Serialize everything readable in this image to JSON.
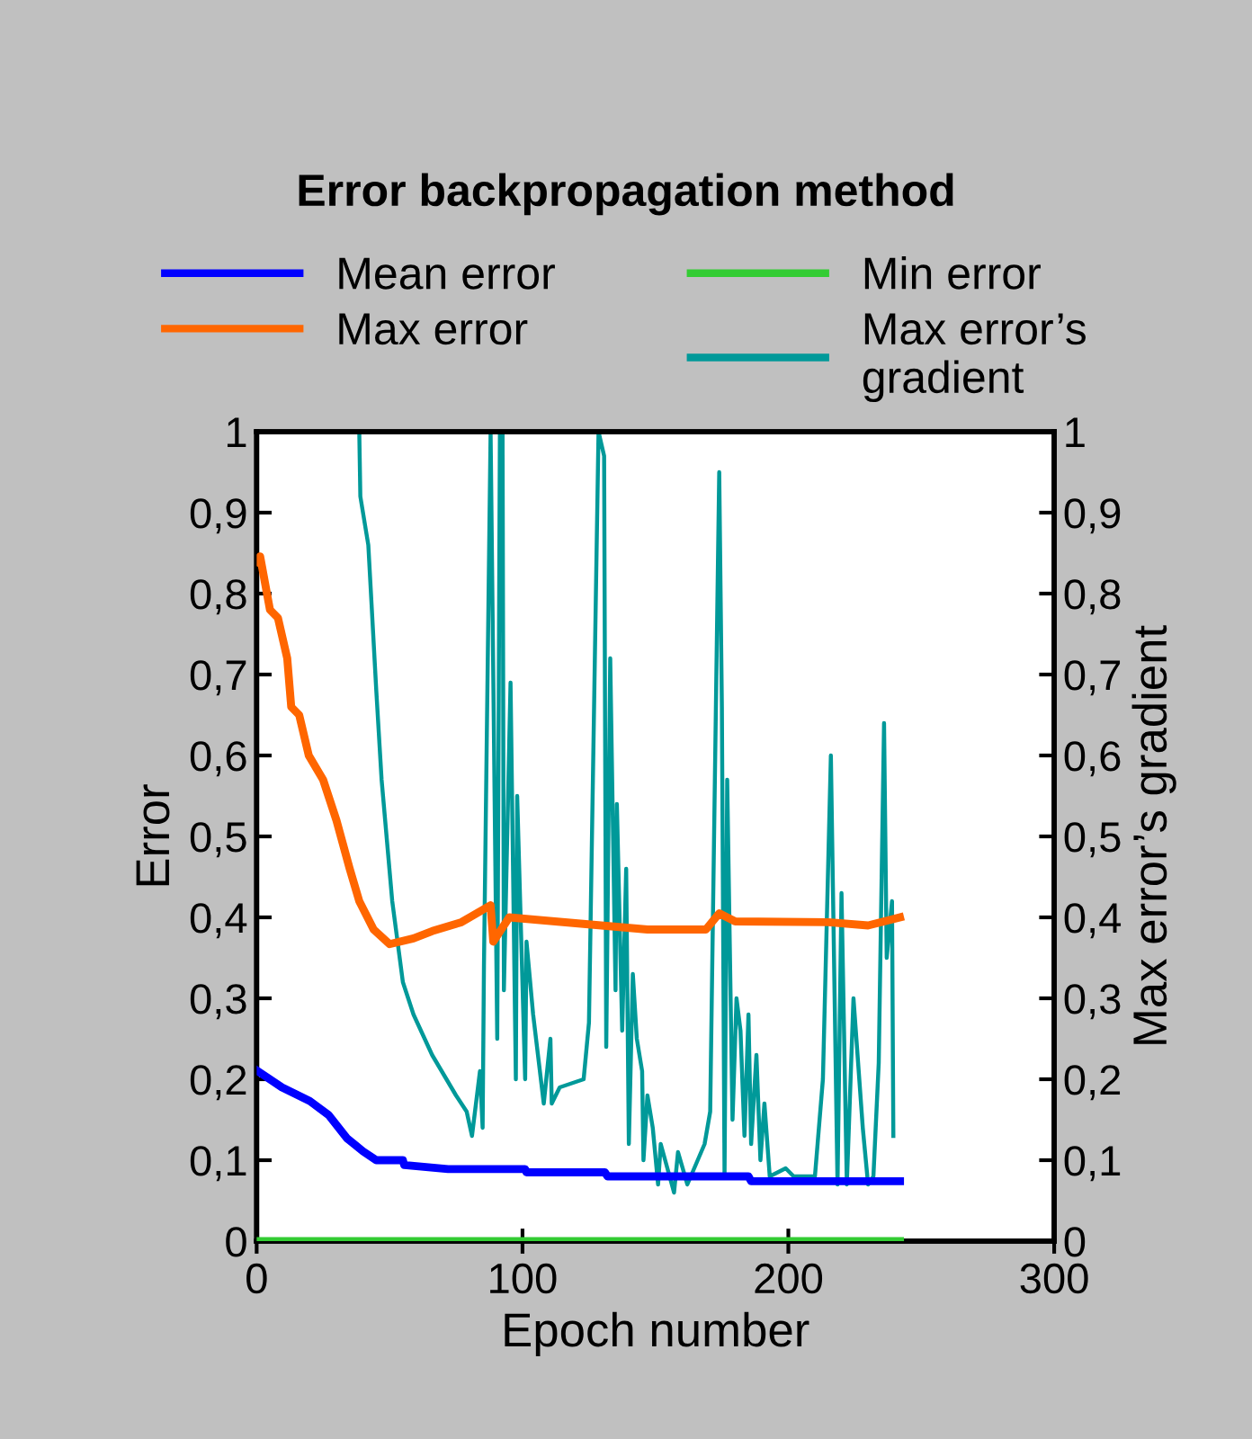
{
  "chart_data": {
    "type": "line",
    "title": "Error backpropagation method",
    "xlabel": "Epoch number",
    "ylabel": "Error",
    "y2label": "Max error’s gradient",
    "xlim": [
      0,
      300
    ],
    "xticks": [
      0,
      100,
      200,
      300
    ],
    "ylim": [
      0,
      1
    ],
    "yticks": [
      0,
      {
        "value": 0.1,
        "label": "0,1"
      },
      {
        "value": 0.2,
        "label": "0,2"
      },
      {
        "value": 0.3,
        "label": "0,3"
      },
      {
        "value": 0.4,
        "label": "0,4"
      },
      {
        "value": 0.5,
        "label": "0,5"
      },
      {
        "value": 0.6,
        "label": "0,6"
      },
      {
        "value": 0.7,
        "label": "0,7"
      },
      {
        "value": 0.8,
        "label": "0,8"
      },
      {
        "value": 0.9,
        "label": "0,9"
      },
      1
    ],
    "y2lim": [
      0,
      1
    ],
    "y2ticks": [
      0,
      {
        "value": 0.1,
        "label": "0,1"
      },
      {
        "value": 0.2,
        "label": "0,2"
      },
      {
        "value": 0.3,
        "label": "0,3"
      },
      {
        "value": 0.4,
        "label": "0,4"
      },
      {
        "value": 0.5,
        "label": "0,5"
      },
      {
        "value": 0.6,
        "label": "0,6"
      },
      {
        "value": 0.7,
        "label": "0,7"
      },
      {
        "value": 0.8,
        "label": "0,8"
      },
      {
        "value": 0.9,
        "label": "0,9"
      },
      1
    ],
    "grid": false,
    "legend": "top",
    "marker": "none",
    "line_style": "solid",
    "series": [
      {
        "name": "Mean error",
        "color": "#0000ff",
        "x": [
          0,
          9.5,
          20,
          27,
          34,
          40,
          45,
          55,
          55.5,
          72,
          101,
          101.5,
          131,
          132,
          185,
          186,
          242
        ],
        "values": [
          0.211,
          0.19,
          0.173,
          0.156,
          0.127,
          0.111,
          0.1,
          0.1,
          0.094,
          0.089,
          0.089,
          0.085,
          0.085,
          0.08,
          0.08,
          0.074,
          0.074
        ]
      },
      {
        "name": "Max error",
        "color": "#ff6600",
        "x": [
          0,
          1.3,
          5,
          8,
          11.5,
          13,
          16,
          19.6,
          25,
          30,
          35,
          38.6,
          44,
          50,
          59,
          66,
          77,
          88,
          89,
          95,
          147,
          169,
          174,
          180,
          215,
          230,
          242
        ],
        "values": [
          0.84,
          0.846,
          0.78,
          0.77,
          0.72,
          0.66,
          0.65,
          0.6,
          0.57,
          0.52,
          0.46,
          0.42,
          0.385,
          0.367,
          0.374,
          0.383,
          0.394,
          0.415,
          0.37,
          0.4,
          0.385,
          0.385,
          0.405,
          0.395,
          0.394,
          0.39,
          0.4
        ]
      },
      {
        "name": "Min error",
        "color": "#33cc33",
        "x": [
          0,
          242
        ],
        "values": [
          0,
          0
        ]
      },
      {
        "name": "Max error’s\ngradient",
        "color": "#009999",
        "axis": "y2",
        "x": [
          38.6,
          39,
          42,
          45,
          47,
          51,
          55,
          59,
          66,
          75,
          79,
          81,
          84,
          85,
          85.5,
          88,
          90.5,
          91.5,
          92.5,
          93,
          95.5,
          97.5,
          98,
          101,
          101.5,
          104,
          108,
          110.5,
          111,
          114,
          123,
          125,
          128.6,
          130.7,
          131.5,
          133,
          135,
          135.5,
          137.5,
          139,
          140,
          141.5,
          143,
          145,
          145.5,
          147,
          149,
          151,
          152,
          157,
          158.5,
          162,
          168.5,
          170.6,
          174,
          175,
          176,
          177,
          179,
          180.5,
          182,
          183.5,
          185,
          186,
          188,
          189.5,
          191,
          193,
          199,
          202,
          210,
          213,
          216,
          218.5,
          220,
          222,
          224.5,
          228,
          230,
          232,
          234,
          236,
          237,
          239,
          239.5
        ],
        "values": [
          1,
          0.92,
          0.86,
          0.68,
          0.57,
          0.42,
          0.32,
          0.28,
          0.23,
          0.18,
          0.16,
          0.13,
          0.21,
          0.14,
          0.34,
          1,
          0.25,
          1,
          1,
          0.31,
          0.69,
          0.2,
          0.55,
          0.2,
          0.37,
          0.28,
          0.17,
          0.25,
          0.17,
          0.19,
          0.2,
          0.27,
          1,
          0.97,
          0.24,
          0.72,
          0.31,
          0.54,
          0.26,
          0.46,
          0.12,
          0.33,
          0.25,
          0.21,
          0.1,
          0.18,
          0.14,
          0.07,
          0.12,
          0.06,
          0.11,
          0.07,
          0.12,
          0.16,
          0.95,
          0.66,
          0.08,
          0.57,
          0.15,
          0.3,
          0.26,
          0.13,
          0.28,
          0.12,
          0.23,
          0.1,
          0.17,
          0.08,
          0.09,
          0.08,
          0.08,
          0.2,
          0.6,
          0.07,
          0.43,
          0.07,
          0.3,
          0.14,
          0.07,
          0.08,
          0.22,
          0.64,
          0.35,
          0.42,
          0.13
        ]
      }
    ]
  }
}
